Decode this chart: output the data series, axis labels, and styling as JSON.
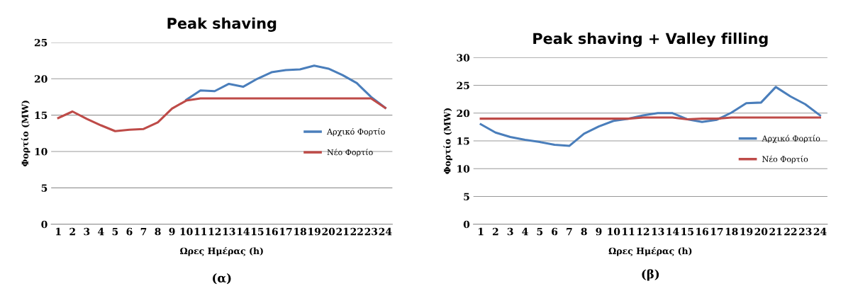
{
  "chart_data": [
    {
      "type": "line",
      "title": "Peak shaving",
      "xlabel": "Ωρες Ημέρας (h)",
      "ylabel": "Φορτίο (MW)",
      "annotations": [
        "(α)"
      ],
      "categories": [
        "1",
        "2",
        "3",
        "4",
        "5",
        "6",
        "7",
        "8",
        "9",
        "10",
        "11",
        "12",
        "13",
        "14",
        "15",
        "16",
        "17",
        "18",
        "19",
        "20",
        "21",
        "22",
        "23",
        "24"
      ],
      "series": [
        {
          "name": "Αρχικό Φορτίο",
          "color": "#4a7ebb",
          "values": [
            null,
            null,
            null,
            null,
            null,
            null,
            null,
            null,
            null,
            17.1,
            18.4,
            18.3,
            19.3,
            18.9,
            20.0,
            20.9,
            21.2,
            21.3,
            21.8,
            21.4,
            20.5,
            19.4,
            17.5,
            16.0
          ]
        },
        {
          "name": "Νέο Φορτίο",
          "color": "#be4b48",
          "values": [
            14.6,
            15.5,
            14.5,
            13.6,
            12.8,
            13.0,
            13.1,
            14.0,
            15.9,
            17.0,
            17.3,
            17.3,
            17.3,
            17.3,
            17.3,
            17.3,
            17.3,
            17.3,
            17.3,
            17.3,
            17.3,
            17.3,
            17.3,
            16.0
          ]
        }
      ],
      "ylim": [
        0,
        25
      ],
      "yticks": [
        0,
        5,
        10,
        15,
        20,
        25
      ],
      "grid": "y",
      "legend": "right",
      "marker": "none"
    },
    {
      "type": "line",
      "title": "Peak shaving + Valley filling",
      "xlabel": "Ωρες Ημέρας (h)",
      "ylabel": "Φορτίο (MW)",
      "annotations": [
        "(β)"
      ],
      "categories": [
        "1",
        "2",
        "3",
        "4",
        "5",
        "6",
        "7",
        "8",
        "9",
        "10",
        "11",
        "12",
        "13",
        "14",
        "15",
        "16",
        "17",
        "18",
        "19",
        "20",
        "21",
        "22",
        "23",
        "24"
      ],
      "series": [
        {
          "name": "Αρχικό Φορτίο",
          "color": "#4a7ebb",
          "values": [
            18.0,
            16.5,
            15.7,
            15.2,
            14.8,
            14.3,
            14.1,
            16.3,
            17.6,
            18.6,
            19.0,
            19.6,
            20.0,
            20.0,
            18.9,
            18.4,
            18.8,
            20.1,
            21.8,
            21.9,
            24.7,
            23.0,
            21.6,
            19.6
          ]
        },
        {
          "name": "Νέο Φορτίο",
          "color": "#be4b48",
          "values": [
            19.0,
            19.0,
            19.0,
            19.0,
            19.0,
            19.0,
            19.0,
            19.0,
            19.0,
            19.0,
            19.0,
            19.2,
            19.2,
            19.2,
            18.9,
            19.0,
            19.0,
            19.2,
            19.2,
            19.2,
            19.2,
            19.2,
            19.2,
            19.2
          ]
        }
      ],
      "ylim": [
        0,
        30
      ],
      "yticks": [
        0,
        5,
        10,
        15,
        20,
        25,
        30
      ],
      "grid": "y",
      "legend": "right",
      "marker": "none"
    }
  ]
}
